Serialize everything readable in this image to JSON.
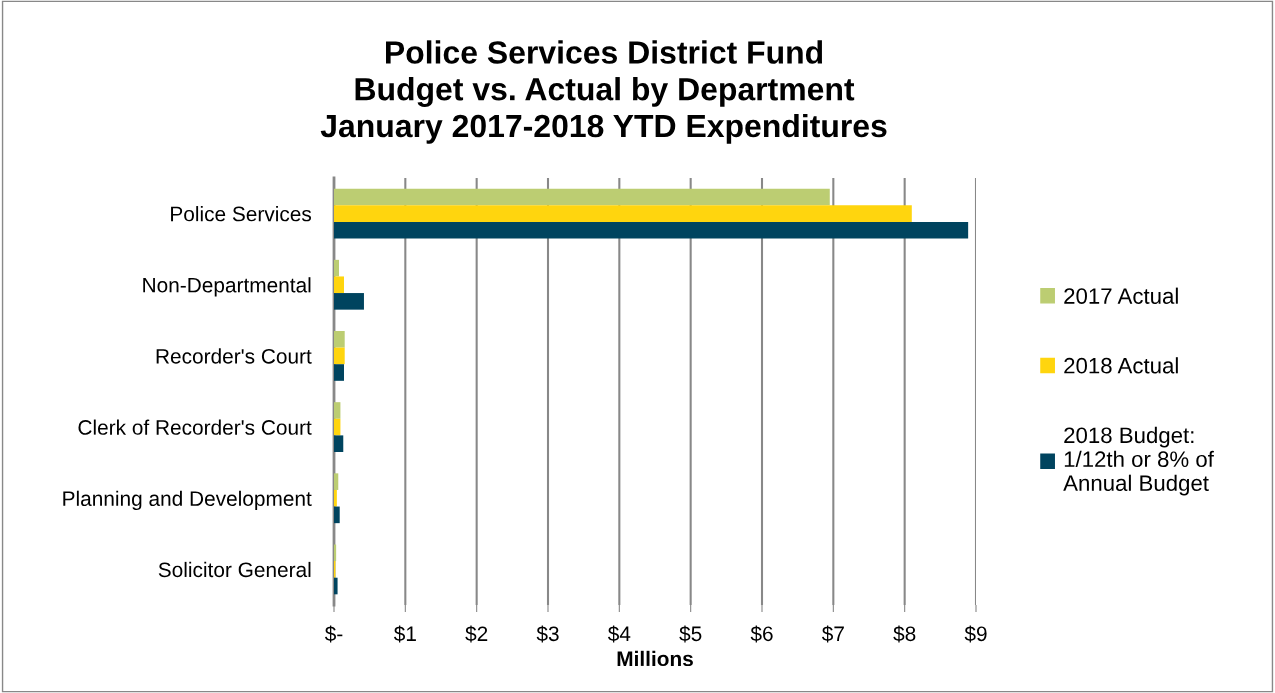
{
  "chart_data": {
    "type": "bar",
    "orientation": "horizontal",
    "title": "Police Services District Fund\nBudget vs. Actual by Department\nJanuary 2017-2018 YTD Expenditures",
    "xlabel": "Millions",
    "categories": [
      "Police Services",
      "Non-Departmental",
      "Recorder's Court",
      "Clerk of Recorder's Court",
      "Planning and Development",
      "Solicitor General"
    ],
    "series": [
      {
        "name": "2017 Actual",
        "color": "#bccd72",
        "values": [
          6.95,
          0.07,
          0.15,
          0.09,
          0.06,
          0.03
        ]
      },
      {
        "name": "2018 Actual",
        "color": "#ffd50e",
        "values": [
          8.1,
          0.14,
          0.15,
          0.09,
          0.04,
          0.02
        ]
      },
      {
        "name": "2018 Budget:\n1/12th or 8% of\nAnnual Budget",
        "color": "#00445f",
        "values": [
          8.89,
          0.42,
          0.14,
          0.13,
          0.08,
          0.05
        ]
      }
    ],
    "xlim": [
      0,
      9
    ],
    "xticks": [
      {
        "value": 0,
        "label": "$-"
      },
      {
        "value": 1,
        "label": "$1"
      },
      {
        "value": 2,
        "label": "$2"
      },
      {
        "value": 3,
        "label": "$3"
      },
      {
        "value": 4,
        "label": "$4"
      },
      {
        "value": 5,
        "label": "$5"
      },
      {
        "value": 6,
        "label": "$6"
      },
      {
        "value": 7,
        "label": "$7"
      },
      {
        "value": 8,
        "label": "$8"
      },
      {
        "value": 9,
        "label": "$9"
      }
    ],
    "grid": "x",
    "legend": "right"
  }
}
